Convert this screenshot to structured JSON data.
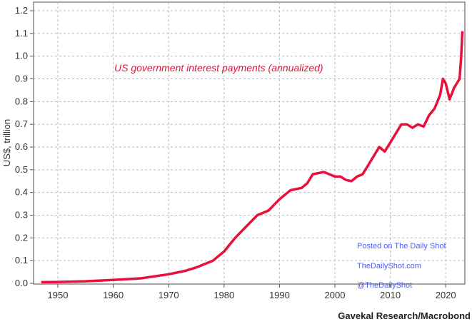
{
  "chart_data": {
    "type": "line",
    "title": "",
    "annotation": "US government interest payments (annualized)",
    "ylabel": "US$, trillion",
    "xlabel": "",
    "ylim": [
      0,
      1.2
    ],
    "xlim": [
      1946.5,
      2024
    ],
    "grid": true,
    "yticks": [
      "0.0",
      "0.1",
      "0.2",
      "0.3",
      "0.4",
      "0.5",
      "0.6",
      "0.7",
      "0.8",
      "0.9",
      "1.0",
      "1.1",
      "1.2"
    ],
    "xticks": [
      "1950",
      "1960",
      "1970",
      "1980",
      "1990",
      "2000",
      "2010",
      "2020"
    ],
    "series": [
      {
        "name": "US government interest payments (annualized)",
        "color": "#e8103a",
        "x": [
          1947,
          1950,
          1955,
          1960,
          1965,
          1970,
          1973,
          1975,
          1978,
          1980,
          1982,
          1984,
          1986,
          1988,
          1990,
          1992,
          1994,
          1995,
          1996,
          1998,
          2000,
          2001,
          2002,
          2003,
          2004,
          2005,
          2006,
          2007,
          2008,
          2009,
          2010,
          2011,
          2012,
          2013,
          2014,
          2015,
          2016,
          2017,
          2018,
          2019,
          2019.5,
          2020,
          2020.7,
          2021.5,
          2022,
          2022.5,
          2022.8,
          2023
        ],
        "y": [
          0.005,
          0.006,
          0.009,
          0.015,
          0.022,
          0.04,
          0.055,
          0.07,
          0.1,
          0.14,
          0.2,
          0.25,
          0.3,
          0.32,
          0.37,
          0.41,
          0.42,
          0.44,
          0.48,
          0.49,
          0.47,
          0.47,
          0.455,
          0.45,
          0.47,
          0.48,
          0.52,
          0.56,
          0.6,
          0.58,
          0.62,
          0.66,
          0.7,
          0.7,
          0.685,
          0.7,
          0.69,
          0.74,
          0.77,
          0.83,
          0.9,
          0.88,
          0.81,
          0.86,
          0.88,
          0.9,
          1.0,
          1.11
        ]
      }
    ]
  },
  "watermark": {
    "line1": "Posted on The Daily Shot",
    "line2": "TheDailyShot.com",
    "line3": "@TheDailyShot"
  },
  "source": "Gavekal Research/Macrobond"
}
